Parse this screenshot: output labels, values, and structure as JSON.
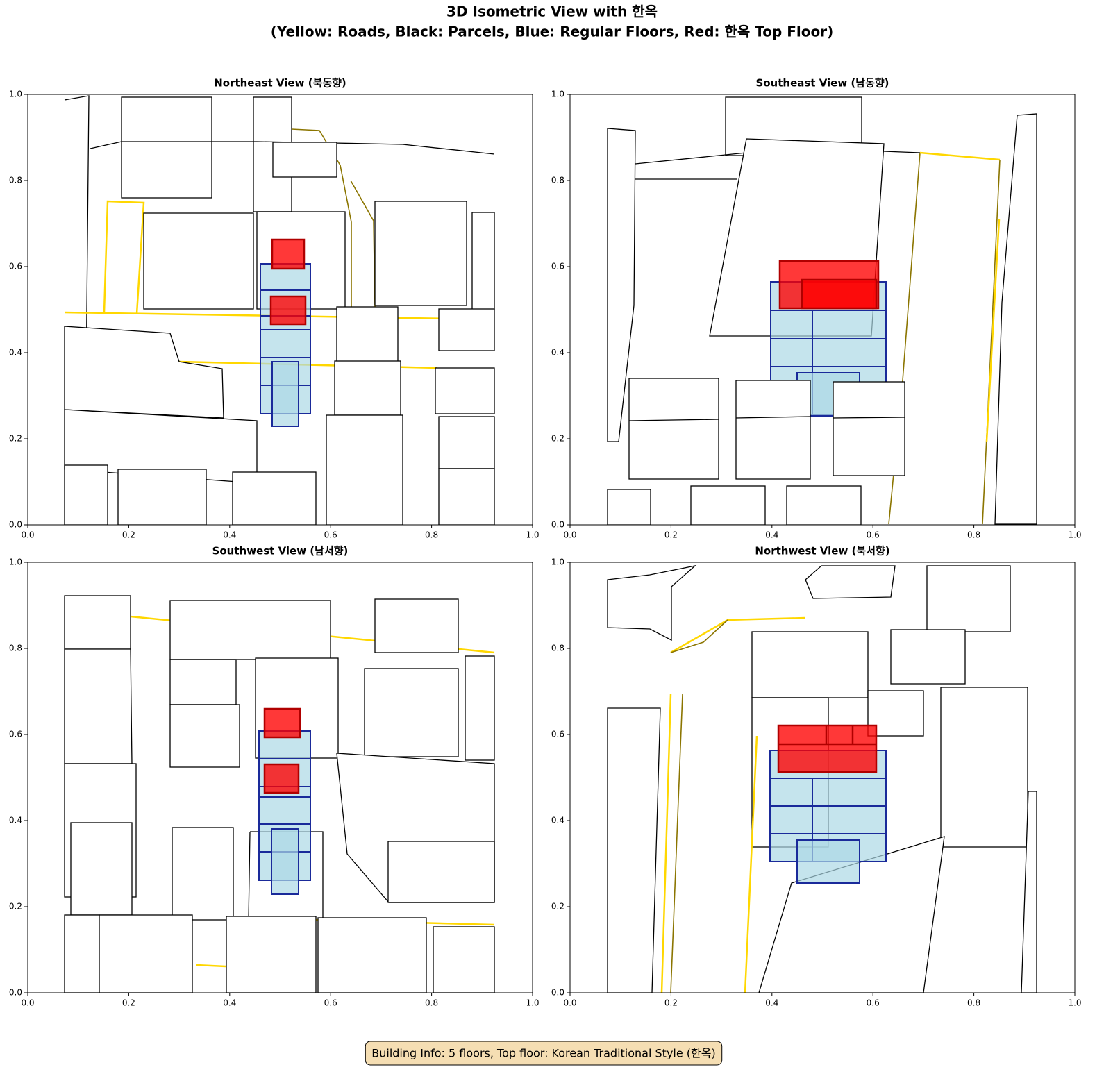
{
  "title": "3D Isometric View with 한옥",
  "subtitle": "(Yellow: Roads, Black: Parcels, Blue: Regular Floors, Red: 한옥 Top Floor)",
  "chart_data": [
    {
      "type": "isometric",
      "title": "Northeast View (북동향)",
      "xlim": [
        0,
        1
      ],
      "ylim": [
        0,
        1
      ],
      "xticks": [
        {
          "value": 0,
          "label": "0.0"
        },
        0.2,
        0.4,
        0.6,
        0.8,
        {
          "value": 1,
          "label": "1.0"
        }
      ],
      "yticks": [
        {
          "value": 0,
          "label": "0.0"
        },
        0.2,
        0.4,
        0.6,
        0.8,
        {
          "value": 1,
          "label": "1.0"
        }
      ]
    },
    {
      "type": "isometric",
      "title": "Southeast View (남동향)",
      "xlim": [
        0,
        1
      ],
      "ylim": [
        0,
        1
      ],
      "xticks": [
        {
          "value": 0,
          "label": "0.0"
        },
        0.2,
        0.4,
        0.6,
        0.8,
        {
          "value": 1,
          "label": "1.0"
        }
      ],
      "yticks": [
        {
          "value": 0,
          "label": "0.0"
        },
        0.2,
        0.4,
        0.6,
        0.8,
        {
          "value": 1,
          "label": "1.0"
        }
      ]
    },
    {
      "type": "isometric",
      "title": "Southwest View (남서향)",
      "xlim": [
        0,
        1
      ],
      "ylim": [
        0,
        1
      ],
      "xticks": [
        {
          "value": 0,
          "label": "0.0"
        },
        0.2,
        0.4,
        0.6,
        0.8,
        {
          "value": 1,
          "label": "1.0"
        }
      ],
      "yticks": [
        {
          "value": 0,
          "label": "0.0"
        },
        0.2,
        0.4,
        0.6,
        0.8,
        {
          "value": 1,
          "label": "1.0"
        }
      ]
    },
    {
      "type": "isometric",
      "title": "Northwest View (북서향)",
      "xlim": [
        0,
        1
      ],
      "ylim": [
        0,
        1
      ],
      "xticks": [
        {
          "value": 0,
          "label": "0.0"
        },
        0.2,
        0.4,
        0.6,
        0.8,
        {
          "value": 1,
          "label": "1.0"
        }
      ],
      "yticks": [
        {
          "value": 0,
          "label": "0.0"
        },
        0.2,
        0.4,
        0.6,
        0.8,
        {
          "value": 1,
          "label": "1.0"
        }
      ]
    }
  ],
  "info": "Building Info: 5 floors, Top floor: Korean Traditional Style (한옥)"
}
